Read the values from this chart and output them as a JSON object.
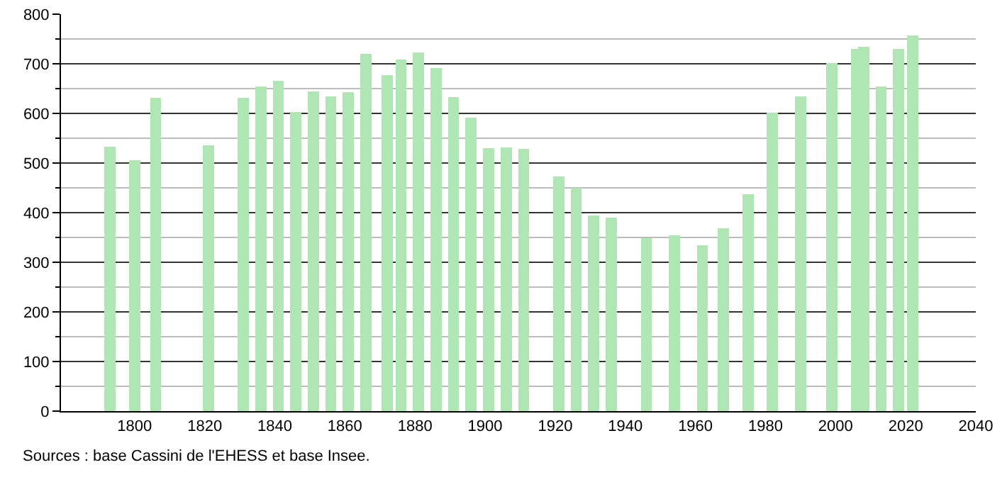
{
  "chart_data": {
    "type": "bar",
    "x": [
      1793,
      1800,
      1806,
      1821,
      1831,
      1836,
      1841,
      1846,
      1851,
      1856,
      1861,
      1866,
      1872,
      1876,
      1881,
      1886,
      1891,
      1896,
      1901,
      1906,
      1911,
      1921,
      1926,
      1931,
      1936,
      1946,
      1954,
      1962,
      1968,
      1975,
      1982,
      1990,
      1999,
      2006,
      2008,
      2013,
      2018,
      2022
    ],
    "values": [
      533,
      506,
      631,
      536,
      631,
      655,
      666,
      603,
      644,
      635,
      643,
      720,
      677,
      708,
      723,
      691,
      633,
      591,
      530,
      532,
      528,
      473,
      450,
      395,
      390,
      348,
      355,
      335,
      368,
      437,
      602,
      635,
      702,
      730,
      735,
      655,
      730,
      757
    ],
    "color": "#b0e6b4",
    "xlim": [
      1779,
      2040
    ],
    "xticks": [
      1800,
      1820,
      1840,
      1860,
      1880,
      1900,
      1920,
      1940,
      1960,
      1980,
      2000,
      2020,
      2040
    ],
    "ylim": [
      0,
      800
    ],
    "yticks": [
      0,
      100,
      200,
      300,
      400,
      500,
      600,
      700,
      800
    ],
    "grid": "y",
    "annotations": [
      "Sources : base Cassini de l'EHESS et base Insee."
    ]
  }
}
